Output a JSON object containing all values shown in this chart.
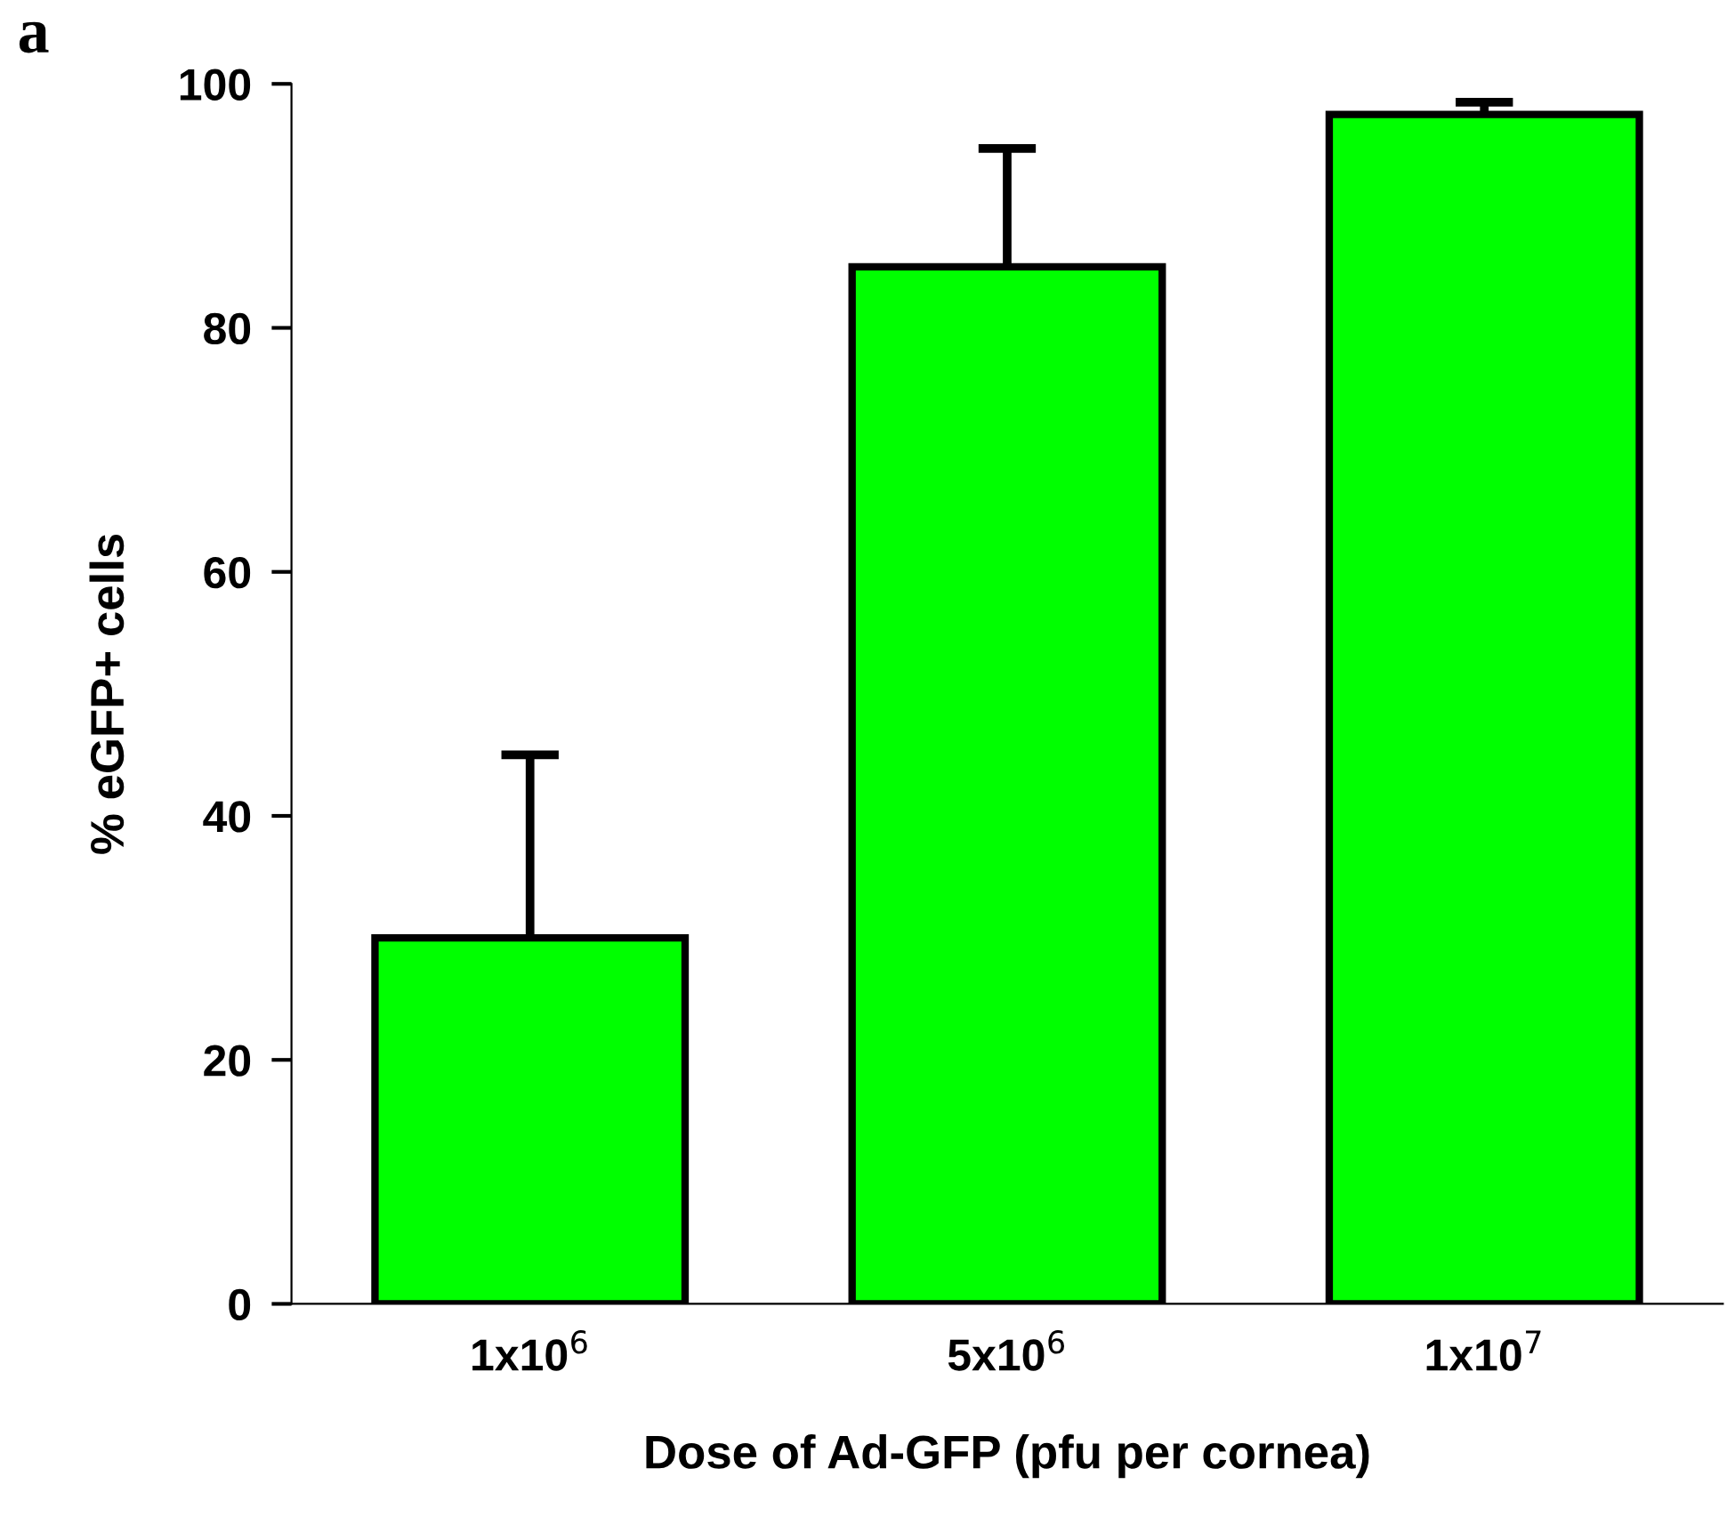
{
  "chart_data": {
    "type": "bar",
    "xlabel": "Dose of Ad-GFP (pfu per cornea)",
    "ylabel": "% eGFP+ cells",
    "categories": [
      "1x10$^{6}$",
      "5x10$^{6}$",
      "1x10$^{7}$"
    ],
    "values": [
      30,
      85,
      97.5
    ],
    "color": "#00ff00",
    "errors": [
      [
        30,
        45
      ],
      [
        85,
        94.7
      ],
      [
        97.5,
        98.5
      ]
    ],
    "ylim": [
      0,
      100
    ],
    "yticks": [
      0,
      20,
      40,
      60,
      80,
      100
    ],
    "grid": false,
    "legend": false,
    "annotations": [
      "a"
    ]
  }
}
